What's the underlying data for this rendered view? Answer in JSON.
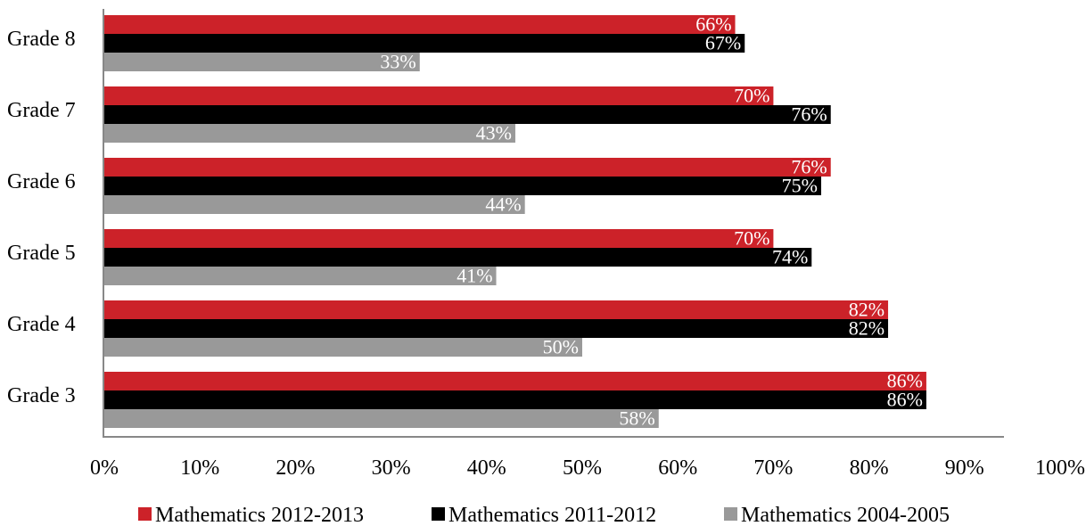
{
  "chart_data": {
    "type": "bar",
    "orientation": "horizontal",
    "categories": [
      "Grade 8",
      "Grade 7",
      "Grade 6",
      "Grade 5",
      "Grade 4",
      "Grade 3"
    ],
    "series": [
      {
        "name": "Mathematics 2012-2013",
        "color": "#cc2229",
        "values": [
          66,
          70,
          76,
          70,
          82,
          86
        ],
        "labels": [
          "66%",
          "70%",
          "76%",
          "70%",
          "82%",
          "86%"
        ]
      },
      {
        "name": "Mathematics 2011-2012",
        "color": "#000000",
        "values": [
          67,
          76,
          75,
          74,
          82,
          86
        ],
        "labels": [
          "67%",
          "76%",
          "75%",
          "74%",
          "82%",
          "86%"
        ]
      },
      {
        "name": "Mathematics 2004-2005",
        "color": "#999999",
        "values": [
          33,
          43,
          44,
          41,
          50,
          58
        ],
        "labels": [
          "33%",
          "43%",
          "44%",
          "41%",
          "50%",
          "58%"
        ]
      }
    ],
    "xlim": [
      0,
      100
    ],
    "x_ticks": [
      "0%",
      "10%",
      "20%",
      "30%",
      "40%",
      "50%",
      "60%",
      "70%",
      "80%",
      "90%",
      "100%"
    ],
    "grid": false,
    "legend": "bottom"
  }
}
